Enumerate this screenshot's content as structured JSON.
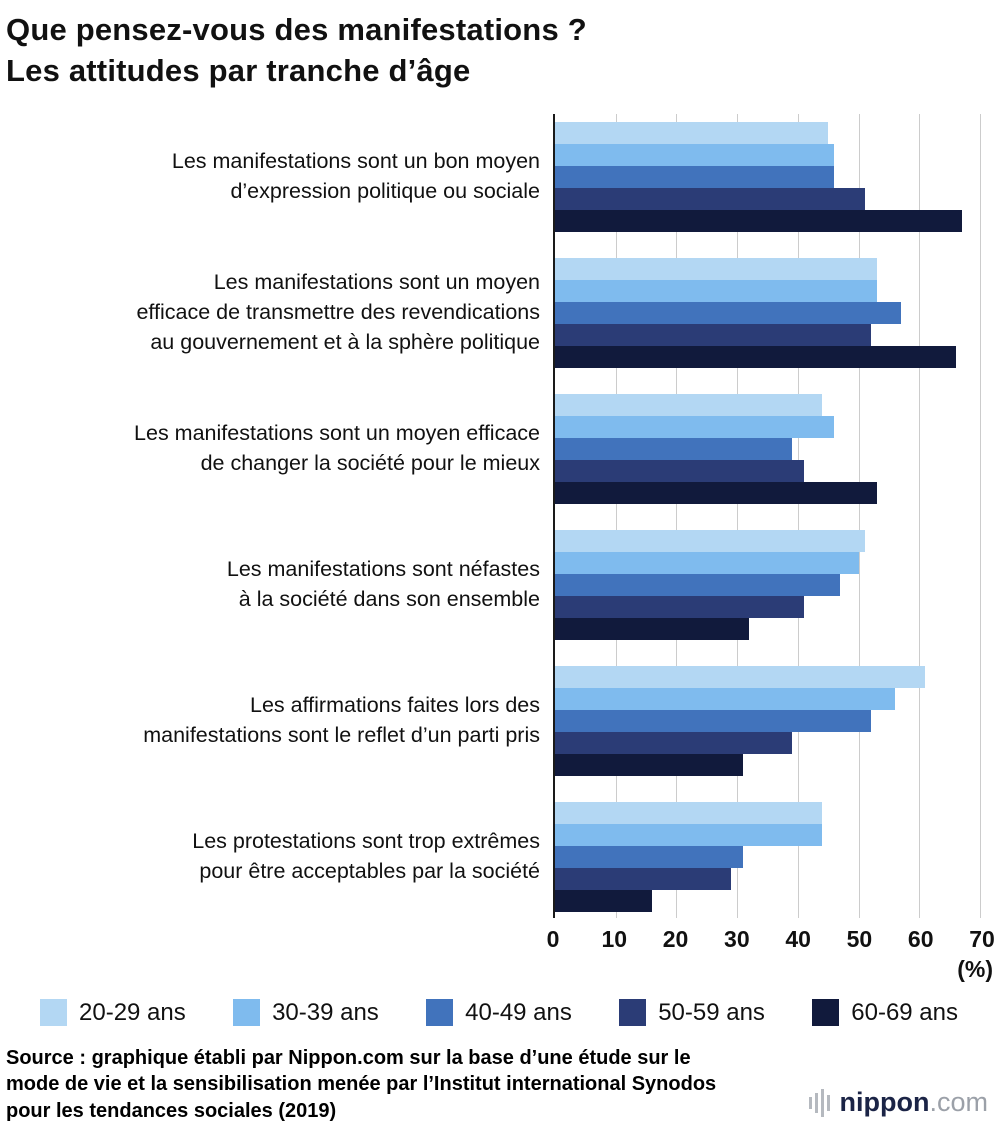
{
  "title_line1": "Que pensez-vous des manifestations ?",
  "title_line2": "Les attitudes par tranche d’âge",
  "chart_data": {
    "type": "bar",
    "orientation": "horizontal",
    "title": "Que pensez-vous des manifestations ? Les attitudes par tranche d’âge",
    "categories": [
      [
        "Les manifestations sont un bon moyen",
        "d’expression politique ou sociale"
      ],
      [
        "Les manifestations sont un moyen",
        "efficace de transmettre des revendications",
        "au gouvernement et à la sphère politique"
      ],
      [
        "Les manifestations sont un moyen efficace",
        "de changer la société pour le mieux"
      ],
      [
        "Les manifestations sont néfastes",
        "à la société dans son ensemble"
      ],
      [
        "Les affirmations faites lors des",
        "manifestations sont le reflet d’un parti pris"
      ],
      [
        "Les protestations sont trop extrêmes",
        "pour être acceptables par la société"
      ]
    ],
    "series": [
      {
        "name": "20-29 ans",
        "color": "#b3d7f3",
        "values": [
          45,
          53,
          44,
          51,
          61,
          44
        ]
      },
      {
        "name": "30-39 ans",
        "color": "#7fbbee",
        "values": [
          46,
          53,
          46,
          50,
          56,
          44
        ]
      },
      {
        "name": "40-49 ans",
        "color": "#4173bc",
        "values": [
          46,
          57,
          39,
          47,
          52,
          31
        ]
      },
      {
        "name": "50-59 ans",
        "color": "#2b3c76",
        "values": [
          51,
          52,
          41,
          41,
          39,
          29
        ]
      },
      {
        "name": "60-69 ans",
        "color": "#111a3c",
        "values": [
          67,
          66,
          53,
          32,
          31,
          16
        ]
      }
    ],
    "xlim": [
      0,
      70
    ],
    "xticks": [
      0,
      10,
      20,
      30,
      40,
      50,
      60,
      70
    ],
    "xunit": "(%)",
    "grid": true,
    "legend_position": "bottom",
    "grid_color": "#cccccc",
    "axis_color": "#1a1a1a"
  },
  "source": "Source : graphique établi par Nippon.com sur la base d’une étude sur le mode de vie et la sensibilisation menée par l’Institut international Synodos pour les tendances sociales (2019)",
  "logo": {
    "name": "nippon",
    "suffix": ".com"
  }
}
